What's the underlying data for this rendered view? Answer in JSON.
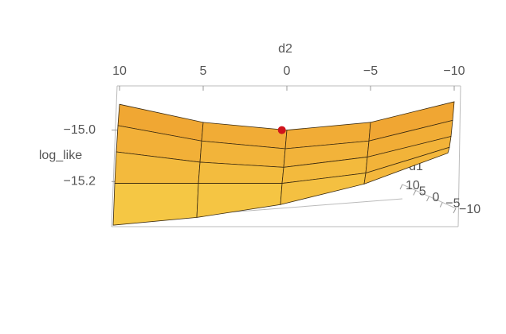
{
  "chart_data": {
    "type": "surface",
    "x_label": "d2",
    "y_label": "d1",
    "z_label": "log_like",
    "x": [
      10,
      5,
      0,
      -5,
      -10
    ],
    "y": [
      10,
      5,
      0,
      -5,
      -10
    ],
    "z": [
      [
        -14.9,
        -14.97,
        -15.0,
        -14.97,
        -14.89
      ],
      [
        -14.98,
        -15.04,
        -15.07,
        -15.04,
        -14.96
      ],
      [
        -15.08,
        -15.12,
        -15.14,
        -15.1,
        -15.02
      ],
      [
        -15.2,
        -15.2,
        -15.2,
        -15.16,
        -15.06
      ],
      [
        -15.36,
        -15.33,
        -15.28,
        -15.2,
        -15.08
      ]
    ],
    "xlim": [
      10,
      -10
    ],
    "xticks": [
      10,
      5,
      0,
      {
        "value": -5,
        "label": "−5"
      },
      {
        "value": -10,
        "label": "−10"
      }
    ],
    "ylim": [
      10,
      -10
    ],
    "yticks": [
      10,
      5,
      0,
      {
        "value": -5,
        "label": "−5"
      },
      {
        "value": -10,
        "label": "−10"
      }
    ],
    "zlim": [
      -15.375,
      -14.85
    ],
    "zticks": [
      {
        "value": -15.0,
        "label": "−15.0"
      },
      {
        "value": -15.2,
        "label": "−15.2"
      }
    ],
    "point": {
      "x": 0.3,
      "y": 10,
      "z": -15.0,
      "color": "#d0141c"
    },
    "colors": [
      "#f7d24a",
      "#ee9a2c"
    ]
  }
}
